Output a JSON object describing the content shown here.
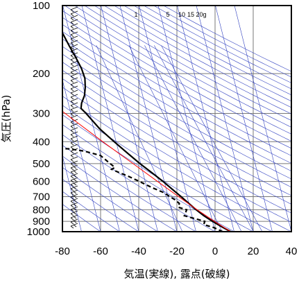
{
  "chart_data": {
    "type": "skew-t",
    "xlabel": "気温(実線), 露点(破線)",
    "ylabel": "気圧(hPa)",
    "xlim": [
      -80,
      40
    ],
    "ylim": [
      1000,
      100
    ],
    "y_scale": "log",
    "x_ticks": [
      -80,
      -60,
      -40,
      -20,
      0,
      20,
      40
    ],
    "y_ticks": [
      100,
      200,
      300,
      400,
      500,
      600,
      700,
      800,
      900,
      1000
    ],
    "mixing_ratio_labels": [
      "1",
      "5",
      "10",
      "15",
      "20g"
    ],
    "grid": true,
    "colors": {
      "temperature": "#000000",
      "dewpoint": "#000000",
      "parcel": "#ff0000",
      "isotherms_adiabats": "#3040c0"
    },
    "series": [
      {
        "style": "solid",
        "points": [
          {
            "p": 1000,
            "t": 8.2
          },
          {
            "p": 950,
            "t": 4.0
          },
          {
            "p": 900,
            "t": 0.0
          },
          {
            "p": 850,
            "t": -3.8
          },
          {
            "p": 800,
            "t": -7.0
          },
          {
            "p": 750,
            "t": -10.0
          },
          {
            "p": 700,
            "t": -13.2
          },
          {
            "p": 650,
            "t": -16.8
          },
          {
            "p": 600,
            "t": -20.6
          },
          {
            "p": 550,
            "t": -25.2
          },
          {
            "p": 500,
            "t": -30.4
          },
          {
            "p": 450,
            "t": -35.5
          },
          {
            "p": 400,
            "t": -41.0
          },
          {
            "p": 350,
            "t": -47.0
          },
          {
            "p": 300,
            "t": -52.0
          },
          {
            "p": 285,
            "t": -54.0
          },
          {
            "p": 270,
            "t": -53.0
          },
          {
            "p": 250,
            "t": -50.5
          },
          {
            "p": 230,
            "t": -49.0
          },
          {
            "p": 210,
            "t": -48.0
          },
          {
            "p": 190,
            "t": -48.5
          },
          {
            "p": 170,
            "t": -50.0
          },
          {
            "p": 150,
            "t": -52.0
          },
          {
            "p": 130,
            "t": -54.0
          },
          {
            "p": 115,
            "t": -54.0
          },
          {
            "p": 105,
            "t": -52.0
          },
          {
            "p": 100,
            "t": -50.0
          }
        ]
      },
      {
        "style": "dashed",
        "points": [
          {
            "p": 1000,
            "t": 4.0
          },
          {
            "p": 960,
            "t": 0.0
          },
          {
            "p": 930,
            "t": -5.0
          },
          {
            "p": 900,
            "t": -4.0
          },
          {
            "p": 880,
            "t": -8.0
          },
          {
            "p": 850,
            "t": -14.0
          },
          {
            "p": 800,
            "t": -12.0
          },
          {
            "p": 780,
            "t": -16.0
          },
          {
            "p": 750,
            "t": -15.0
          },
          {
            "p": 720,
            "t": -17.0
          },
          {
            "p": 700,
            "t": -19.0
          },
          {
            "p": 670,
            "t": -22.0
          },
          {
            "p": 640,
            "t": -27.0
          },
          {
            "p": 620,
            "t": -30.0
          },
          {
            "p": 600,
            "t": -33.0
          },
          {
            "p": 570,
            "t": -38.0
          },
          {
            "p": 550,
            "t": -42.0
          },
          {
            "p": 530,
            "t": -46.0
          },
          {
            "p": 520,
            "t": -44.0
          },
          {
            "p": 500,
            "t": -46.0
          },
          {
            "p": 480,
            "t": -48.0
          },
          {
            "p": 460,
            "t": -50.0
          },
          {
            "p": 440,
            "t": -58.0
          },
          {
            "p": 430,
            "t": -66.0
          },
          {
            "p": 428,
            "t": -80.0
          }
        ]
      },
      {
        "style": "parcel",
        "points": [
          {
            "p": 1000,
            "t": 8.2
          },
          {
            "p": 900,
            "t": 1.0
          },
          {
            "p": 800,
            "t": -6.5
          },
          {
            "p": 700,
            "t": -14.5
          },
          {
            "p": 600,
            "t": -23.5
          },
          {
            "p": 500,
            "t": -34.0
          },
          {
            "p": 400,
            "t": -47.0
          },
          {
            "p": 300,
            "t": -63.0
          },
          {
            "p": 220,
            "t": -80.0
          }
        ]
      }
    ]
  }
}
